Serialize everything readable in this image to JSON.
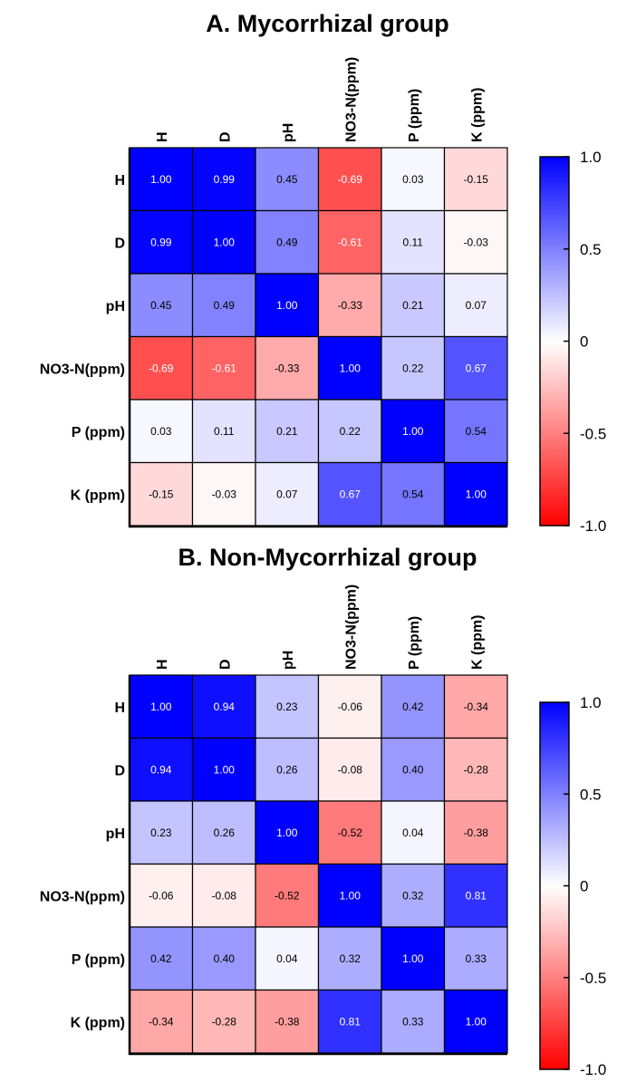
{
  "chart_data": [
    {
      "type": "heatmap",
      "title": "A. Mycorrhizal group",
      "variables": [
        "H",
        "D",
        "pH",
        "NO3-N(ppm)",
        "P (ppm)",
        "K (ppm)"
      ],
      "values": [
        [
          "1.00",
          "0.99",
          "0.45",
          "-0.69",
          "0.03",
          "-0.15"
        ],
        [
          "0.99",
          "1.00",
          "0.49",
          "-0.61",
          "0.11",
          "-0.03"
        ],
        [
          "0.45",
          "0.49",
          "1.00",
          "-0.33",
          "0.21",
          "0.07"
        ],
        [
          "-0.69",
          "-0.61",
          "-0.33",
          "1.00",
          "0.22",
          "0.67"
        ],
        [
          "0.03",
          "0.11",
          "0.21",
          "0.22",
          "1.00",
          "0.54"
        ],
        [
          "-0.15",
          "-0.03",
          "0.07",
          "0.67",
          "0.54",
          "1.00"
        ]
      ],
      "colorscale": {
        "min": -1.0,
        "max": 1.0,
        "low_color": "#ff0000",
        "mid_color": "#ffffff",
        "high_color": "#0000ff"
      },
      "colorbar_ticks": [
        "1.0",
        "0.5",
        "0",
        "-0.5",
        "-1.0"
      ]
    },
    {
      "type": "heatmap",
      "title": "B. Non-Mycorrhizal group",
      "variables": [
        "H",
        "D",
        "pH",
        "NO3-N(ppm)",
        "P (ppm)",
        "K (ppm)"
      ],
      "values": [
        [
          "1.00",
          "0.94",
          "0.23",
          "-0.06",
          "0.42",
          "-0.34"
        ],
        [
          "0.94",
          "1.00",
          "0.26",
          "-0.08",
          "0.40",
          "-0.28"
        ],
        [
          "0.23",
          "0.26",
          "1.00",
          "-0.52",
          "0.04",
          "-0.38"
        ],
        [
          "-0.06",
          "-0.08",
          "-0.52",
          "1.00",
          "0.32",
          "0.81"
        ],
        [
          "0.42",
          "0.40",
          "0.04",
          "0.32",
          "1.00",
          "0.33"
        ],
        [
          "-0.34",
          "-0.28",
          "-0.38",
          "0.81",
          "0.33",
          "1.00"
        ]
      ],
      "colorscale": {
        "min": -1.0,
        "max": 1.0,
        "low_color": "#ff0000",
        "mid_color": "#ffffff",
        "high_color": "#0000ff"
      },
      "colorbar_ticks": [
        "1.0",
        "0.5",
        "0",
        "-0.5",
        "-1.0"
      ]
    }
  ]
}
